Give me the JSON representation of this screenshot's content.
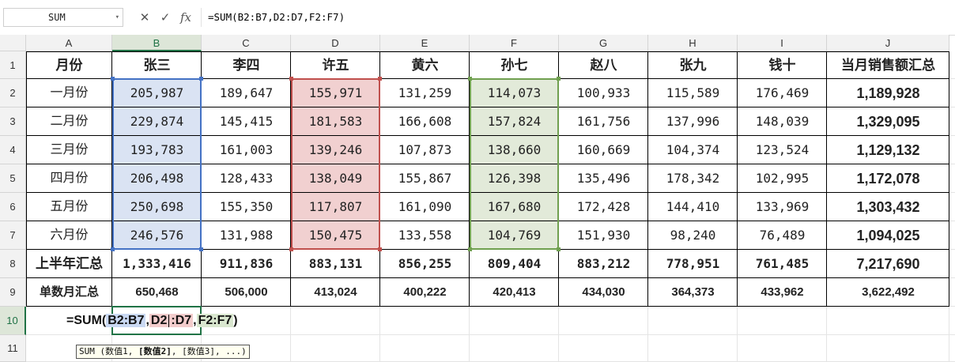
{
  "namebox": {
    "value": "SUM"
  },
  "formula_bar": {
    "cancel_icon": "✕",
    "enter_icon": "✓",
    "fx_label": "fx",
    "content": "=SUM(B2:B7,D2:D7,F2:F7)"
  },
  "columns": [
    "A",
    "B",
    "C",
    "D",
    "E",
    "F",
    "G",
    "H",
    "I",
    "J"
  ],
  "rows": [
    "1",
    "2",
    "3",
    "4",
    "5",
    "6",
    "7",
    "8",
    "9",
    "10",
    "11"
  ],
  "header_row": [
    "月份",
    "张三",
    "李四",
    "许五",
    "黄六",
    "孙七",
    "赵八",
    "张九",
    "钱十",
    "当月销售额汇总"
  ],
  "data_rows": [
    [
      "一月份",
      "205,987",
      "189,647",
      "155,971",
      "131,259",
      "114,073",
      "100,933",
      "115,589",
      "176,469",
      "1,189,928"
    ],
    [
      "二月份",
      "229,874",
      "145,415",
      "181,583",
      "166,608",
      "157,824",
      "161,756",
      "137,996",
      "148,039",
      "1,329,095"
    ],
    [
      "三月份",
      "193,783",
      "161,003",
      "139,246",
      "107,873",
      "138,660",
      "160,669",
      "104,374",
      "123,524",
      "1,129,132"
    ],
    [
      "四月份",
      "206,498",
      "128,433",
      "138,049",
      "155,867",
      "126,398",
      "135,496",
      "178,342",
      "102,995",
      "1,172,078"
    ],
    [
      "五月份",
      "250,698",
      "155,350",
      "117,807",
      "161,090",
      "167,680",
      "172,428",
      "144,410",
      "133,969",
      "1,303,432"
    ],
    [
      "六月份",
      "246,576",
      "131,988",
      "150,475",
      "133,558",
      "104,769",
      "151,930",
      "98,240",
      "76,489",
      "1,094,025"
    ]
  ],
  "half_year_row": [
    "上半年汇总",
    "1,333,416",
    "911,836",
    "883,131",
    "856,255",
    "809,404",
    "883,212",
    "778,951",
    "761,485",
    "7,217,690"
  ],
  "odd_month_row": [
    "单数月汇总",
    "650,468",
    "506,000",
    "413,024",
    "400,222",
    "420,413",
    "434,030",
    "364,373",
    "433,962",
    "3,622,492"
  ],
  "editing": {
    "prefix": "=SUM(",
    "ref1": "B2:B7",
    "sep1": ",",
    "ref2a": "D2",
    "ref2b": ":D7",
    "sep2": ",",
    "ref3": "F2:F7",
    "suffix": ")"
  },
  "tooltip": {
    "pre": "SUM (数值1, ",
    "bold": "[数值2]",
    "post": ", [数值3], ...)"
  },
  "colors": {
    "blue_range": "#4472c4",
    "red_range": "#c0504d",
    "green_range": "#70a050",
    "active_cell": "#217346"
  }
}
